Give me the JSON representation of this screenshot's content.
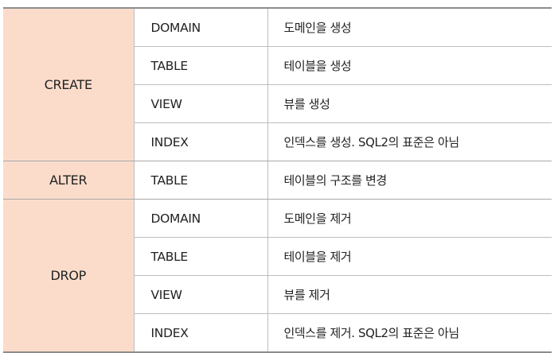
{
  "table": {
    "groups": [
      {
        "command": "CREATE",
        "rows": [
          {
            "object": "DOMAIN",
            "description": "도메인을 생성"
          },
          {
            "object": "TABLE",
            "description": "테이블을 생성"
          },
          {
            "object": "VIEW",
            "description": "뷰를 생성"
          },
          {
            "object": "INDEX",
            "description": "인덱스를 생성. SQL2의 표준은 아님"
          }
        ]
      },
      {
        "command": "ALTER",
        "rows": [
          {
            "object": "TABLE",
            "description": "테이블의 구조를 변경"
          }
        ]
      },
      {
        "command": "DROP",
        "rows": [
          {
            "object": "DOMAIN",
            "description": "도메인을 제거"
          },
          {
            "object": "TABLE",
            "description": "테이블을 제거"
          },
          {
            "object": "VIEW",
            "description": "뷰를 제거"
          },
          {
            "object": "INDEX",
            "description": "인덱스를 제거. SQL2의 표준은 아님"
          }
        ]
      }
    ]
  },
  "colors": {
    "command_cell_background": "#fbdccb",
    "rule": "#8c8c8c",
    "grid": "#bdbdbd",
    "text": "#222222"
  }
}
